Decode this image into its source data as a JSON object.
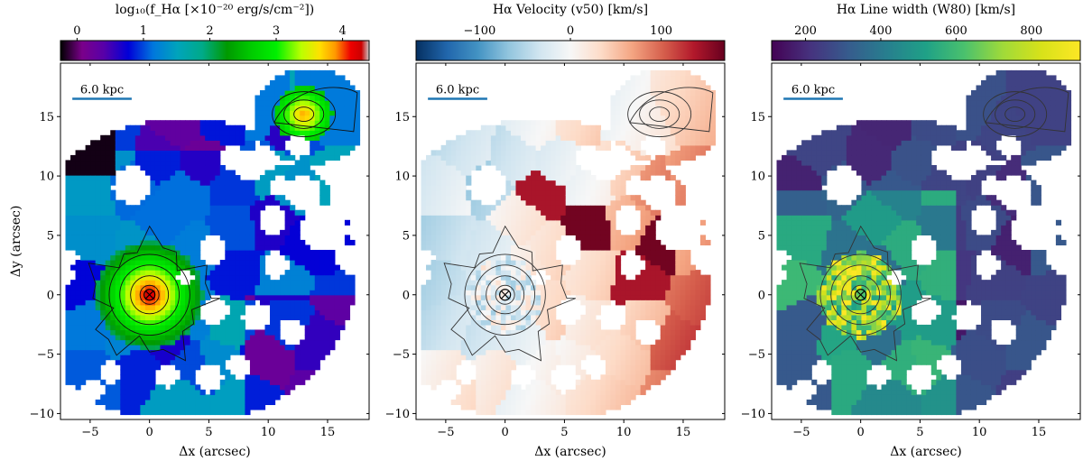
{
  "chart_data": [
    {
      "type": "heatmap",
      "title": "",
      "colorbar_label": "log₁₀(f_Hα [×10⁻²⁰ erg/s/cm⁻²])",
      "colorbar_ticks": [
        "0",
        "1",
        "2",
        "3",
        "4"
      ],
      "colorbar_range": [
        -0.25,
        4.4
      ],
      "colormap": "nipy_spectral",
      "xlabel": "Δx (arcsec)",
      "ylabel": "Δy (arcsec)",
      "xlim": [
        -7.5,
        18.5
      ],
      "ylim": [
        -10.5,
        19.5
      ],
      "xticks": [
        "−5",
        "0",
        "5",
        "10",
        "15"
      ],
      "yticks": [
        "−10",
        "−5",
        "0",
        "5",
        "10",
        "15"
      ],
      "scale_bar": "6.0 kpc",
      "center_marker": [
        0,
        0
      ],
      "notes": "Voronoi-binned emission map with flux contours around nucleus (0,0) and companion near (13,15)"
    },
    {
      "type": "heatmap",
      "title": "",
      "colorbar_label": "Hα Velocity (v50) [km/s]",
      "colorbar_ticks": [
        "−100",
        "0",
        "100"
      ],
      "colorbar_range": [
        -170,
        170
      ],
      "colormap": "RdBu_r",
      "xlabel": "Δx (arcsec)",
      "ylabel": "",
      "xlim": [
        -7.5,
        18.5
      ],
      "ylim": [
        -10.5,
        19.5
      ],
      "xticks": [
        "−5",
        "0",
        "5",
        "10",
        "15"
      ],
      "yticks": [
        "−10",
        "−5",
        "0",
        "5",
        "10",
        "15"
      ],
      "scale_bar": "6.0 kpc",
      "center_marker": [
        0,
        0
      ]
    },
    {
      "type": "heatmap",
      "title": "",
      "colorbar_label": "Hα Line width (W80) [km/s]",
      "colorbar_ticks": [
        "200",
        "400",
        "600",
        "800"
      ],
      "colorbar_range": [
        110,
        930
      ],
      "colormap": "viridis",
      "xlabel": "Δx (arcsec)",
      "ylabel": "",
      "xlim": [
        -7.5,
        18.5
      ],
      "ylim": [
        -10.5,
        19.5
      ],
      "xticks": [
        "−5",
        "0",
        "5",
        "10",
        "15"
      ],
      "yticks": [
        "−10",
        "−5",
        "0",
        "5",
        "10",
        "15"
      ],
      "scale_bar": "6.0 kpc",
      "center_marker": [
        0,
        0
      ]
    }
  ]
}
